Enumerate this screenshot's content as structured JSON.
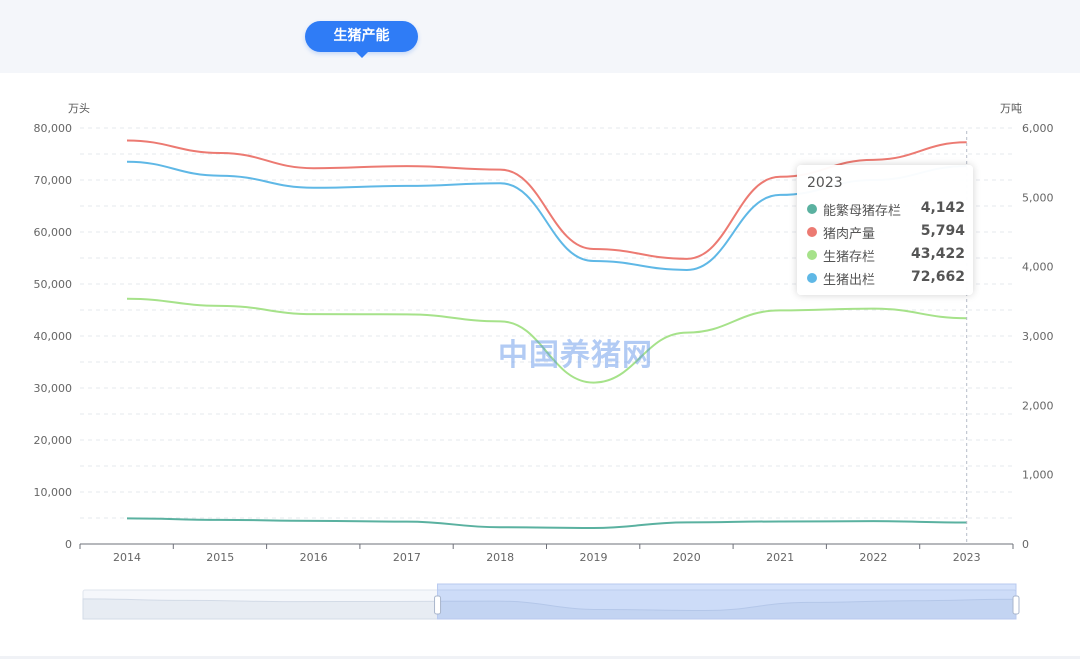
{
  "header": {
    "title": "生猪产能"
  },
  "watermark": "中国养猪网",
  "colors": {
    "sows": "#5ab1a0",
    "pork": "#ec7a72",
    "stock": "#a6e28a",
    "slaughter": "#5fb8e6"
  },
  "chart_data": {
    "type": "line",
    "x": [
      "2014",
      "2015",
      "2016",
      "2017",
      "2018",
      "2019",
      "2020",
      "2021",
      "2022",
      "2023"
    ],
    "left_axis": {
      "unit": "万头",
      "ylim": [
        0,
        80000
      ],
      "ticks": [
        "0",
        "10,000",
        "20,000",
        "30,000",
        "40,000",
        "50,000",
        "60,000",
        "70,000",
        "80,000"
      ]
    },
    "right_axis": {
      "unit": "万吨",
      "ylim": [
        0,
        6000
      ],
      "ticks": [
        "0",
        "1,000",
        "2,000",
        "3,000",
        "4,000",
        "5,000",
        "6,000"
      ]
    },
    "series": [
      {
        "name": "能繁母猪存栏",
        "axis": "left",
        "color_key": "sows",
        "values": [
          4926,
          4634,
          4456,
          4300,
          3224,
          3080,
          4161,
          4329,
          4390,
          4142
        ]
      },
      {
        "name": "猪肉产量",
        "axis": "right",
        "color_key": "pork",
        "values": [
          5820,
          5640,
          5420,
          5450,
          5400,
          4255,
          4113,
          5296,
          5541,
          5794
        ]
      },
      {
        "name": "生猪存栏",
        "axis": "left",
        "color_key": "stock",
        "values": [
          47160,
          45803,
          44209,
          44159,
          42817,
          31041,
          40650,
          44922,
          45256,
          43422
        ]
      },
      {
        "name": "生猪出栏",
        "axis": "left",
        "color_key": "slaughter",
        "values": [
          73510,
          70825,
          68502,
          68861,
          69382,
          54419,
          52704,
          67128,
          69995,
          72662
        ]
      }
    ],
    "grid": "dashed-horizontal",
    "legend": "none",
    "tooltip": {
      "year": "2023",
      "rows": [
        {
          "name": "能繁母猪存栏",
          "value": "4,142",
          "color_key": "sows"
        },
        {
          "name": "猪肉产量",
          "value": "5,794",
          "color_key": "pork"
        },
        {
          "name": "生猪存栏",
          "value": "43,422",
          "color_key": "stock"
        },
        {
          "name": "生猪出栏",
          "value": "72,662",
          "color_key": "slaughter"
        }
      ]
    },
    "data_zoom": {
      "start": 0.38,
      "end": 1.0
    }
  }
}
